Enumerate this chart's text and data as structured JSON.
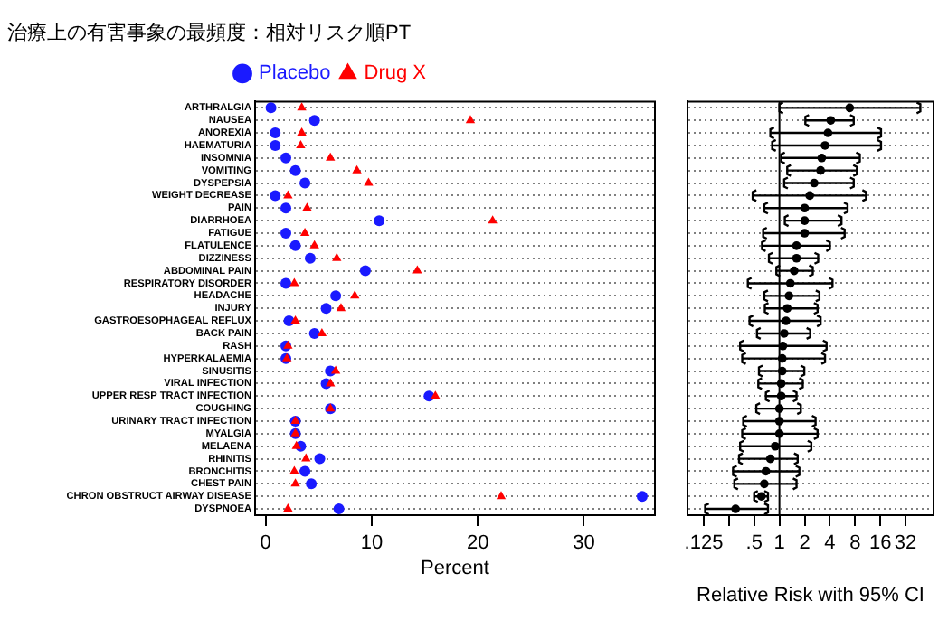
{
  "chart_data": [
    {
      "type": "scatter",
      "orientation": "horizontal",
      "title": "治療上の有害事象の最頻度：相対リスク順PT",
      "xlabel": "Percent",
      "categories": [
        "ARTHRALGIA",
        "NAUSEA",
        "ANOREXIA",
        "HAEMATURIA",
        "INSOMNIA",
        "VOMITING",
        "DYSPEPSIA",
        "WEIGHT DECREASE",
        "PAIN",
        "DIARRHOEA",
        "FATIGUE",
        "FLATULENCE",
        "DIZZINESS",
        "ABDOMINAL PAIN",
        "RESPIRATORY DISORDER",
        "HEADACHE",
        "INJURY",
        "GASTROESOPHAGEAL REFLUX",
        "BACK PAIN",
        "RASH",
        "HYPERKALAEMIA",
        "SINUSITIS",
        "VIRAL INFECTION",
        "UPPER RESP TRACT INFECTION",
        "COUGHING",
        "URINARY TRACT INFECTION",
        "MYALGIA",
        "MELAENA",
        "RHINITIS",
        "BRONCHITIS",
        "CHEST PAIN",
        "CHRON OBSTRUCT AIRWAY DISEASE",
        "DYSPNOEA"
      ],
      "series": [
        {
          "name": "Placebo",
          "color": "#1a1aff",
          "marker": "circle",
          "values": [
            0.5,
            4.6,
            0.9,
            0.9,
            1.9,
            2.8,
            3.7,
            0.9,
            1.9,
            10.7,
            1.9,
            2.8,
            4.2,
            9.4,
            1.9,
            6.6,
            5.7,
            2.2,
            4.6,
            1.9,
            1.9,
            6.1,
            5.7,
            15.4,
            6.1,
            2.8,
            2.8,
            3.3,
            5.1,
            3.7,
            4.3,
            35.5,
            6.9
          ]
        },
        {
          "name": "Drug X",
          "color": "#ff0000",
          "marker": "triangle",
          "values": [
            3.4,
            19.3,
            3.4,
            3.3,
            6.1,
            8.6,
            9.7,
            2.1,
            3.9,
            21.4,
            3.7,
            4.6,
            6.7,
            14.3,
            2.7,
            8.4,
            7.1,
            2.8,
            5.3,
            2.1,
            2.0,
            6.6,
            6.1,
            16.0,
            6.1,
            2.8,
            2.8,
            2.9,
            3.8,
            2.7,
            2.8,
            22.2,
            2.1
          ]
        }
      ],
      "xlim": [
        -1,
        36.7
      ],
      "xticks": [
        0,
        10,
        20,
        30
      ],
      "grid": "y",
      "legend": "top"
    },
    {
      "type": "scatter",
      "orientation": "horizontal",
      "xlabel": "Relative Risk with 95% CI",
      "log": "x",
      "tick_labels": "x",
      "categories": [
        null,
        null,
        null,
        null,
        null,
        null,
        null,
        null,
        null,
        null,
        null,
        null,
        null,
        null,
        null,
        null,
        null,
        null,
        null,
        null,
        null,
        null,
        null,
        null,
        null,
        null,
        null,
        null,
        null,
        null,
        null,
        null,
        null
      ],
      "color": "#000000",
      "marker": "circle",
      "values": [
        6.9,
        4.1,
        3.8,
        3.5,
        3.2,
        3.1,
        2.6,
        2.3,
        2.0,
        2.0,
        2.0,
        1.6,
        1.6,
        1.5,
        1.35,
        1.3,
        1.24,
        1.2,
        1.14,
        1.1,
        1.08,
        1.08,
        1.05,
        1.05,
        1.0,
        1.0,
        1.0,
        0.89,
        0.78,
        0.69,
        0.66,
        0.61,
        0.3
      ],
      "errors": [
        [
          1.0,
          48
        ],
        [
          2.04,
          7.7
        ],
        [
          0.78,
          16.3
        ],
        [
          0.82,
          16.3
        ],
        [
          1.05,
          9.1
        ],
        [
          1.24,
          8.4
        ],
        [
          1.14,
          7.7
        ],
        [
          0.48,
          10.8
        ],
        [
          0.66,
          6.5
        ],
        [
          1.16,
          5.5
        ],
        [
          0.64,
          6.0
        ],
        [
          0.62,
          4.0
        ],
        [
          0.75,
          2.9
        ],
        [
          0.92,
          2.5
        ],
        [
          0.42,
          4.3
        ],
        [
          0.66,
          3.0
        ],
        [
          0.67,
          2.85
        ],
        [
          0.44,
          3.1
        ],
        [
          0.54,
          2.33
        ],
        [
          0.34,
          3.65
        ],
        [
          0.36,
          3.5
        ],
        [
          0.57,
          1.98
        ],
        [
          0.56,
          1.9
        ],
        [
          0.69,
          1.6
        ],
        [
          0.53,
          1.8
        ],
        [
          0.37,
          2.7
        ],
        [
          0.36,
          2.85
        ],
        [
          0.34,
          2.4
        ],
        [
          0.33,
          1.65
        ],
        [
          0.28,
          1.73
        ],
        [
          0.29,
          1.6
        ],
        [
          0.5,
          0.73
        ],
        [
          0.13,
          0.73
        ]
      ],
      "xlim": [
        0.08,
        69
      ],
      "xticks": [
        {
          "value": 0.125,
          "label": ".125"
        },
        {
          "value": 0.25,
          "label": null
        },
        {
          "value": 0.5,
          "label": ".5"
        },
        1,
        2,
        4,
        8,
        16,
        32
      ],
      "grid": "y",
      "ref_lines": [
        {
          "axis": "x",
          "value": 1
        }
      ]
    }
  ]
}
